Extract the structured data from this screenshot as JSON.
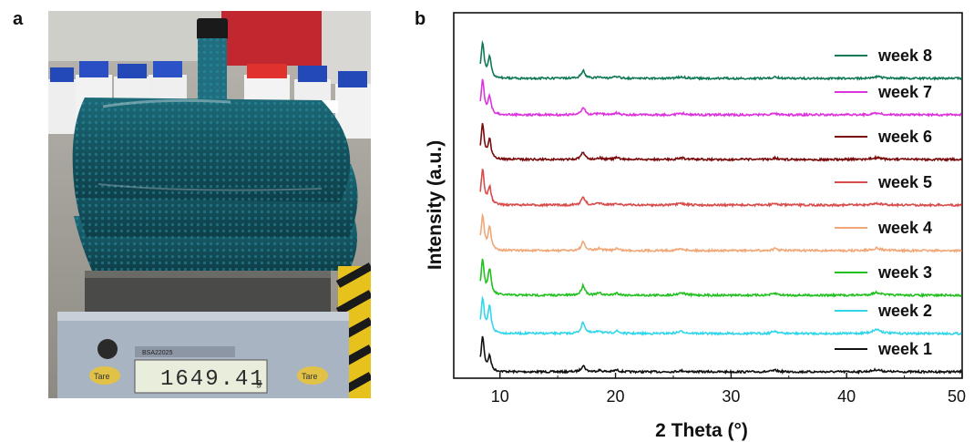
{
  "panels": {
    "a": "a",
    "b": "b"
  },
  "photo": {
    "scale_reading": "1649.41",
    "unit": "g",
    "tare_left": "Tare",
    "tare_right": "Tare",
    "model": "BSA22025"
  },
  "chart_data": {
    "type": "line",
    "title": "",
    "xlabel": "2 Theta (°)",
    "ylabel": "Intensity (a.u.)",
    "xlim": [
      6,
      50
    ],
    "x_ticks": [
      10,
      20,
      30,
      40,
      50
    ],
    "y_ticks": [],
    "grid": false,
    "legend_position": "right, stacked beside each curve",
    "peaks_2theta": [
      8.5,
      9.1,
      17.2,
      18.6,
      20.1,
      25.7,
      33.8,
      42.6
    ],
    "series": [
      {
        "name": "week 1",
        "color": "#111111",
        "peak_heights": [
          1.0,
          0.42,
          0.18,
          0.04,
          0.05,
          0.03,
          0.04,
          0.06
        ]
      },
      {
        "name": "week 2",
        "color": "#33d6e8",
        "peak_heights": [
          1.0,
          0.75,
          0.32,
          0.08,
          0.07,
          0.06,
          0.07,
          0.12
        ]
      },
      {
        "name": "week 3",
        "color": "#22c020",
        "peak_heights": [
          1.0,
          0.72,
          0.28,
          0.06,
          0.06,
          0.07,
          0.05,
          0.08
        ]
      },
      {
        "name": "week 4",
        "color": "#f0a878",
        "peak_heights": [
          1.0,
          0.65,
          0.24,
          0.06,
          0.06,
          0.05,
          0.05,
          0.07
        ]
      },
      {
        "name": "week 5",
        "color": "#d94c4c",
        "peak_heights": [
          1.0,
          0.5,
          0.22,
          0.05,
          0.05,
          0.04,
          0.04,
          0.05
        ]
      },
      {
        "name": "week 6",
        "color": "#7a0b0b",
        "peak_heights": [
          1.0,
          0.55,
          0.2,
          0.05,
          0.05,
          0.04,
          0.04,
          0.05
        ]
      },
      {
        "name": "week 7",
        "color": "#dd33dd",
        "peak_heights": [
          1.0,
          0.5,
          0.2,
          0.05,
          0.05,
          0.04,
          0.04,
          0.05
        ]
      },
      {
        "name": "week 8",
        "color": "#117a55",
        "peak_heights": [
          1.0,
          0.6,
          0.22,
          0.05,
          0.05,
          0.04,
          0.04,
          0.05
        ]
      }
    ]
  }
}
